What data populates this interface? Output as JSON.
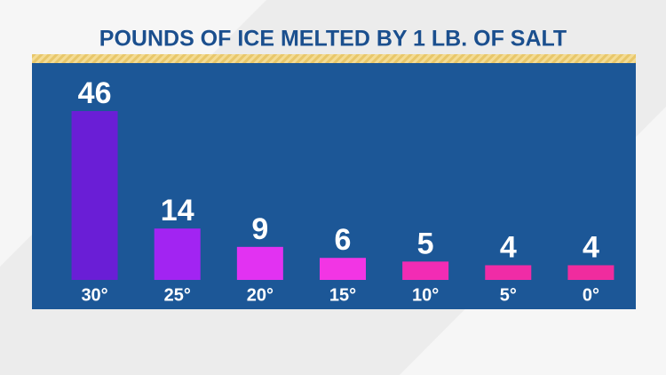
{
  "chart_data": {
    "type": "bar",
    "title": "POUNDS OF ICE MELTED BY 1 LB. OF SALT",
    "categories": [
      "30°",
      "25°",
      "20°",
      "15°",
      "10°",
      "5°",
      "0°"
    ],
    "values": [
      46,
      14,
      9,
      6,
      5,
      4,
      4
    ],
    "colors": [
      "#6a1ed6",
      "#a224f2",
      "#e232f2",
      "#f235e4",
      "#f22cb4",
      "#f02ca6",
      "#f02c9e"
    ]
  }
}
